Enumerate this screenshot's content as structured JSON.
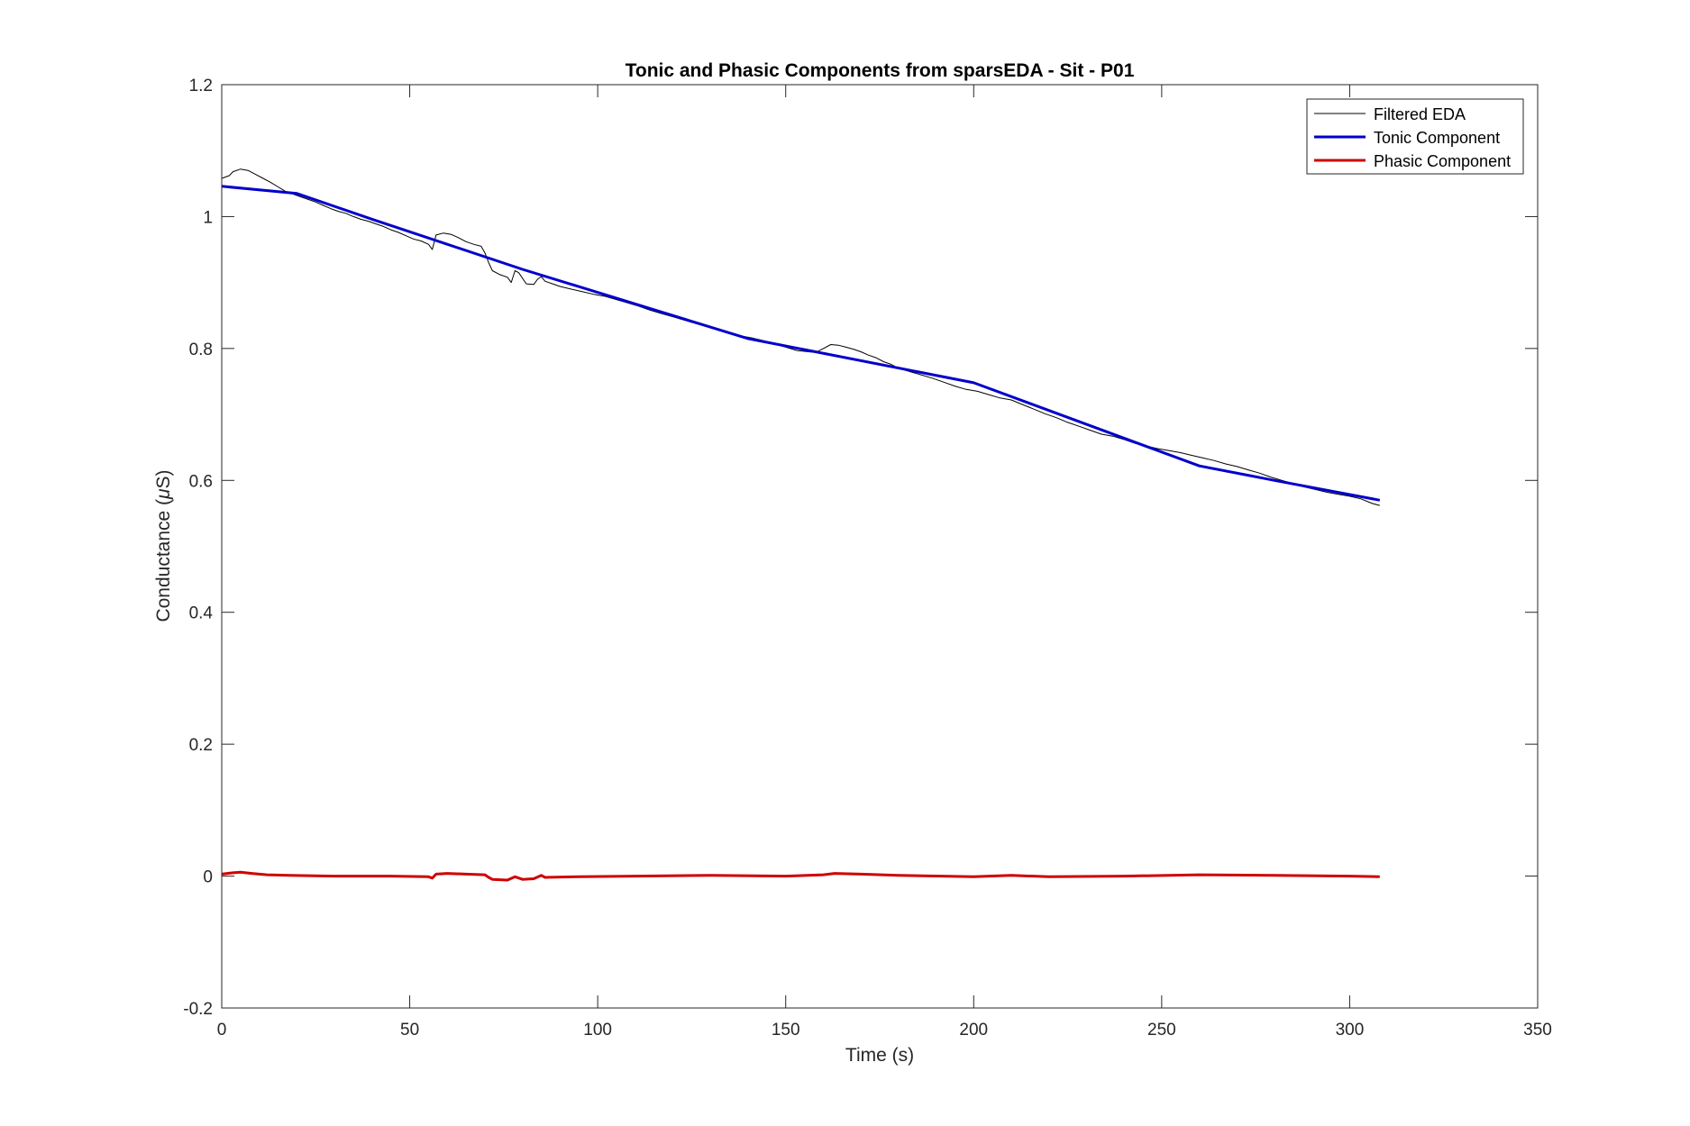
{
  "chart_data": {
    "type": "line",
    "title": "Tonic and Phasic Components from sparsEDA - Sit - P01",
    "xlabel": "Time (s)",
    "ylabel_prefix": "Conductance (",
    "ylabel_mu": "μ",
    "ylabel_suffix": "S)",
    "xlim": [
      0,
      350
    ],
    "ylim": [
      -0.2,
      1.2
    ],
    "xticks": [
      0,
      50,
      100,
      150,
      200,
      250,
      300,
      350
    ],
    "yticks": [
      -0.2,
      0,
      0.2,
      0.4,
      0.6,
      0.8,
      1,
      1.2
    ],
    "xtick_labels": [
      "0",
      "50",
      "100",
      "150",
      "200",
      "250",
      "300",
      "350"
    ],
    "ytick_labels": [
      "-0.2",
      "0",
      "0.2",
      "0.4",
      "0.6",
      "0.8",
      "1",
      "1.2"
    ],
    "grid": false,
    "legend_position": "top-right",
    "series": [
      {
        "name": "Filtered EDA",
        "color": "#000000",
        "style": "thin",
        "points": [
          [
            0,
            1.058
          ],
          [
            2,
            1.062
          ],
          [
            3,
            1.068
          ],
          [
            5,
            1.072
          ],
          [
            7,
            1.07
          ],
          [
            9,
            1.064
          ],
          [
            11,
            1.058
          ],
          [
            13,
            1.052
          ],
          [
            15,
            1.045
          ],
          [
            17,
            1.038
          ],
          [
            19,
            1.034
          ],
          [
            21,
            1.03
          ],
          [
            23,
            1.026
          ],
          [
            25,
            1.022
          ],
          [
            27,
            1.017
          ],
          [
            29,
            1.012
          ],
          [
            31,
            1.008
          ],
          [
            33,
            1.005
          ],
          [
            35,
            1.0
          ],
          [
            37,
            0.996
          ],
          [
            39,
            0.993
          ],
          [
            41,
            0.989
          ],
          [
            43,
            0.985
          ],
          [
            45,
            0.98
          ],
          [
            47,
            0.976
          ],
          [
            49,
            0.971
          ],
          [
            51,
            0.966
          ],
          [
            53,
            0.963
          ],
          [
            55,
            0.958
          ],
          [
            56,
            0.95
          ],
          [
            57,
            0.972
          ],
          [
            59,
            0.975
          ],
          [
            61,
            0.973
          ],
          [
            63,
            0.968
          ],
          [
            65,
            0.962
          ],
          [
            67,
            0.958
          ],
          [
            69,
            0.955
          ],
          [
            70,
            0.945
          ],
          [
            71,
            0.93
          ],
          [
            72,
            0.918
          ],
          [
            74,
            0.912
          ],
          [
            76,
            0.908
          ],
          [
            77,
            0.9
          ],
          [
            78,
            0.918
          ],
          [
            79,
            0.915
          ],
          [
            81,
            0.898
          ],
          [
            83,
            0.897
          ],
          [
            84,
            0.905
          ],
          [
            85,
            0.909
          ],
          [
            86,
            0.902
          ],
          [
            88,
            0.898
          ],
          [
            90,
            0.894
          ],
          [
            93,
            0.89
          ],
          [
            96,
            0.886
          ],
          [
            99,
            0.882
          ],
          [
            102,
            0.879
          ],
          [
            105,
            0.874
          ],
          [
            108,
            0.869
          ],
          [
            111,
            0.864
          ],
          [
            114,
            0.858
          ],
          [
            117,
            0.853
          ],
          [
            120,
            0.848
          ],
          [
            123,
            0.843
          ],
          [
            126,
            0.838
          ],
          [
            129,
            0.833
          ],
          [
            132,
            0.828
          ],
          [
            135,
            0.823
          ],
          [
            138,
            0.819
          ],
          [
            141,
            0.816
          ],
          [
            144,
            0.812
          ],
          [
            147,
            0.807
          ],
          [
            150,
            0.802
          ],
          [
            153,
            0.797
          ],
          [
            156,
            0.795
          ],
          [
            158,
            0.794
          ],
          [
            160,
            0.8
          ],
          [
            162,
            0.806
          ],
          [
            164,
            0.805
          ],
          [
            166,
            0.802
          ],
          [
            168,
            0.799
          ],
          [
            170,
            0.795
          ],
          [
            172,
            0.79
          ],
          [
            174,
            0.786
          ],
          [
            176,
            0.78
          ],
          [
            178,
            0.776
          ],
          [
            180,
            0.77
          ],
          [
            183,
            0.765
          ],
          [
            186,
            0.76
          ],
          [
            189,
            0.755
          ],
          [
            192,
            0.749
          ],
          [
            195,
            0.743
          ],
          [
            198,
            0.738
          ],
          [
            201,
            0.735
          ],
          [
            204,
            0.73
          ],
          [
            207,
            0.725
          ],
          [
            210,
            0.722
          ],
          [
            213,
            0.715
          ],
          [
            216,
            0.708
          ],
          [
            219,
            0.701
          ],
          [
            222,
            0.695
          ],
          [
            225,
            0.688
          ],
          [
            228,
            0.682
          ],
          [
            231,
            0.676
          ],
          [
            234,
            0.67
          ],
          [
            237,
            0.667
          ],
          [
            240,
            0.662
          ],
          [
            243,
            0.656
          ],
          [
            246,
            0.652
          ],
          [
            249,
            0.648
          ],
          [
            252,
            0.645
          ],
          [
            255,
            0.642
          ],
          [
            258,
            0.638
          ],
          [
            261,
            0.634
          ],
          [
            264,
            0.63
          ],
          [
            267,
            0.625
          ],
          [
            270,
            0.621
          ],
          [
            273,
            0.616
          ],
          [
            276,
            0.611
          ],
          [
            279,
            0.605
          ],
          [
            282,
            0.6
          ],
          [
            285,
            0.595
          ],
          [
            288,
            0.59
          ],
          [
            291,
            0.586
          ],
          [
            294,
            0.582
          ],
          [
            297,
            0.579
          ],
          [
            300,
            0.576
          ],
          [
            303,
            0.572
          ],
          [
            306,
            0.565
          ],
          [
            308,
            0.562
          ]
        ]
      },
      {
        "name": "Tonic Component",
        "color": "#0000cc",
        "style": "thick",
        "points": [
          [
            0,
            1.046
          ],
          [
            20,
            1.035
          ],
          [
            40,
            0.996
          ],
          [
            80,
            0.92
          ],
          [
            140,
            0.815
          ],
          [
            200,
            0.748
          ],
          [
            260,
            0.622
          ],
          [
            280,
            0.6
          ],
          [
            308,
            0.57
          ]
        ]
      },
      {
        "name": "Phasic Component",
        "color": "#d00000",
        "style": "thick",
        "points": [
          [
            0,
            0.003
          ],
          [
            3,
            0.005
          ],
          [
            5,
            0.006
          ],
          [
            8,
            0.004
          ],
          [
            12,
            0.002
          ],
          [
            18,
            0.001
          ],
          [
            30,
            0.0
          ],
          [
            45,
            0.0
          ],
          [
            55,
            -0.001
          ],
          [
            56,
            -0.003
          ],
          [
            57,
            0.003
          ],
          [
            60,
            0.004
          ],
          [
            65,
            0.003
          ],
          [
            70,
            0.002
          ],
          [
            71,
            -0.002
          ],
          [
            72,
            -0.005
          ],
          [
            76,
            -0.006
          ],
          [
            78,
            -0.001
          ],
          [
            80,
            -0.005
          ],
          [
            83,
            -0.004
          ],
          [
            85,
            0.001
          ],
          [
            86,
            -0.002
          ],
          [
            95,
            -0.001
          ],
          [
            110,
            0.0
          ],
          [
            130,
            0.001
          ],
          [
            150,
            0.0
          ],
          [
            160,
            0.002
          ],
          [
            163,
            0.004
          ],
          [
            170,
            0.003
          ],
          [
            180,
            0.001
          ],
          [
            200,
            -0.001
          ],
          [
            210,
            0.001
          ],
          [
            220,
            -0.001
          ],
          [
            240,
            0.0
          ],
          [
            260,
            0.002
          ],
          [
            280,
            0.001
          ],
          [
            300,
            0.0
          ],
          [
            308,
            -0.001
          ]
        ]
      }
    ]
  }
}
